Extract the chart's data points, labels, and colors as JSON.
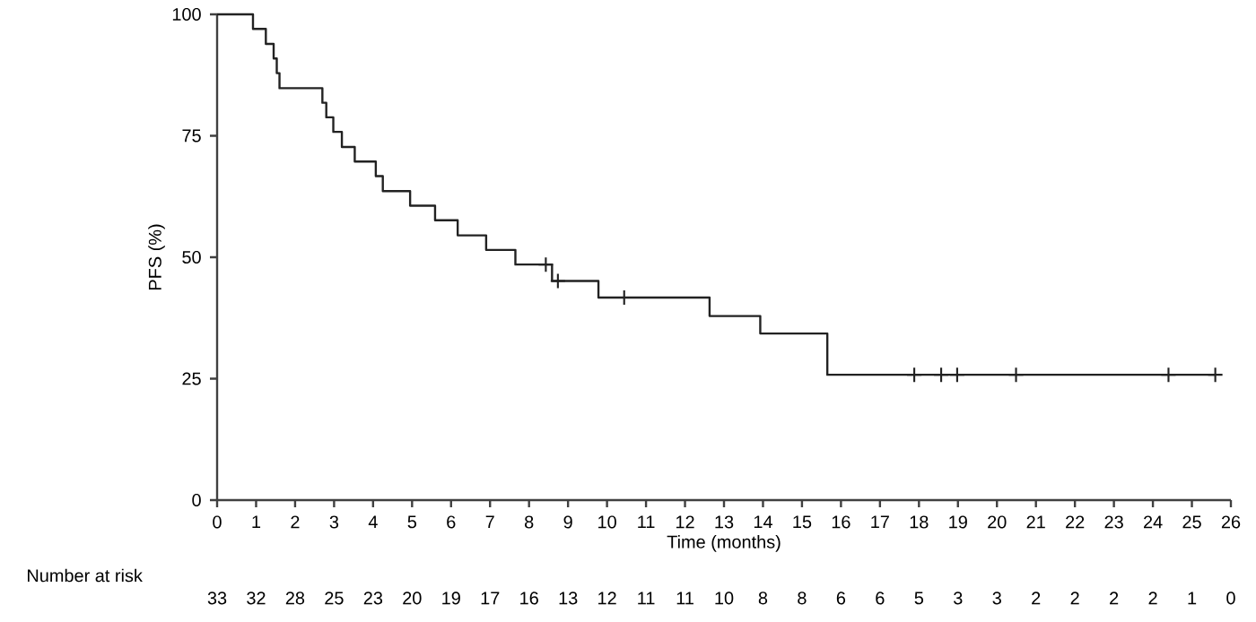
{
  "chart_data": {
    "type": "step",
    "xlabel": "Time (months)",
    "ylabel": "PFS (%)",
    "xlim": [
      0,
      26
    ],
    "xticks": [
      0,
      1,
      2,
      3,
      4,
      5,
      6,
      7,
      8,
      9,
      10,
      11,
      12,
      13,
      14,
      15,
      16,
      17,
      18,
      19,
      20,
      21,
      22,
      23,
      24,
      25,
      26
    ],
    "ylim": [
      0,
      100
    ],
    "yticks": [
      0,
      25,
      50,
      75,
      100
    ],
    "grid": false,
    "series": [
      {
        "type": "step",
        "color": "#222222",
        "marker": "none",
        "x": [
          0,
          0.92,
          1.25,
          1.45,
          1.53,
          1.6,
          2.7,
          2.8,
          2.98,
          3.2,
          3.53,
          4.07,
          4.25,
          4.95,
          5.59,
          6.17,
          6.9,
          7.65,
          8.59,
          9.78,
          12.63,
          13.93,
          15.65,
          25.6
        ],
        "values": [
          100,
          97.0,
          93.9,
          90.9,
          87.9,
          84.8,
          81.8,
          78.8,
          75.8,
          72.7,
          69.7,
          66.7,
          63.6,
          60.6,
          57.6,
          54.5,
          51.5,
          48.5,
          45.1,
          41.7,
          37.9,
          34.3,
          25.8,
          25.8
        ]
      },
      {
        "type": "scatter",
        "color": "#222222",
        "marker": "cross",
        "x": [
          8.43,
          8.74,
          10.44,
          17.88,
          18.57,
          18.98,
          20.49,
          24.4,
          25.6
        ],
        "values": [
          48.5,
          45.1,
          41.7,
          25.8,
          25.8,
          25.8,
          25.8,
          25.8,
          25.8
        ]
      }
    ],
    "annotations": [
      "Number at risk",
      "33",
      "32",
      "28",
      "25",
      "23",
      "20",
      "19",
      "17",
      "16",
      "13",
      "12",
      "11",
      "11",
      "10",
      "8",
      "8",
      "6",
      "6",
      "5",
      "3",
      "3",
      "2",
      "2",
      "2",
      "2",
      "1",
      "0"
    ]
  }
}
